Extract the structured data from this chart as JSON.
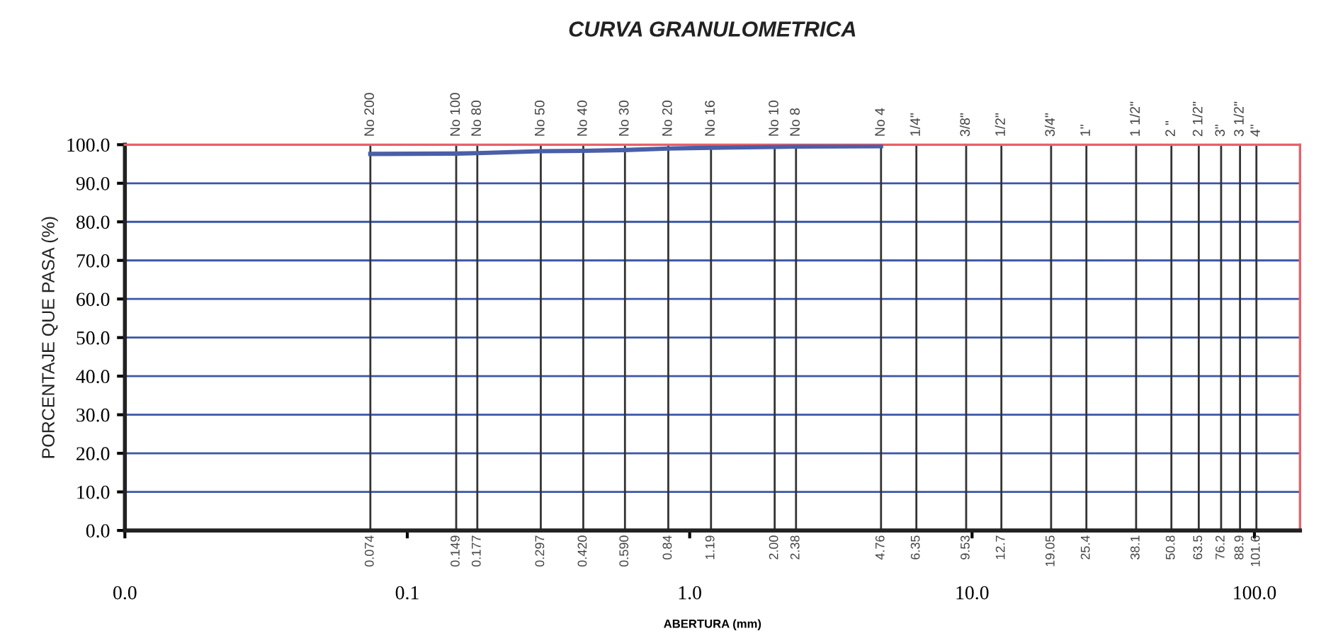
{
  "chart_data": {
    "type": "line",
    "title": "CURVA GRANULOMETRICA",
    "xlabel": "ABERTURA (mm)",
    "ylabel": "PORCENTAJE QUE PASA (%)",
    "log": "x",
    "xlim": [
      0.01,
      145
    ],
    "xticks": [
      {
        "value": 0.01,
        "label": "0.0"
      },
      0.1,
      {
        "value": 1,
        "label": "1.0"
      },
      {
        "value": 10,
        "label": "10.0"
      },
      {
        "value": 100,
        "label": "100.0"
      }
    ],
    "annotations": [
      {
        "text": "No 200",
        "x": 0.074,
        "y": 100
      },
      {
        "text": "No 100",
        "x": 0.149,
        "y": 100
      },
      {
        "text": "No 80",
        "x": 0.177,
        "y": 100
      },
      {
        "text": "No 50",
        "x": 0.297,
        "y": 100
      },
      {
        "text": "No 40",
        "x": 0.42,
        "y": 100
      },
      {
        "text": "No 30",
        "x": 0.59,
        "y": 100
      },
      {
        "text": "No 20",
        "x": 0.84,
        "y": 100
      },
      {
        "text": "No 16",
        "x": 1.19,
        "y": 100
      },
      {
        "text": "No 10",
        "x": 2.0,
        "y": 100
      },
      {
        "text": "No 8",
        "x": 2.38,
        "y": 100
      },
      {
        "text": "No 4",
        "x": 4.76,
        "y": 100
      },
      {
        "text": "1/4\"",
        "x": 6.35,
        "y": 100
      },
      {
        "text": "3/8\"",
        "x": 9.53,
        "y": 100
      },
      {
        "text": "1/2\"",
        "x": 12.7,
        "y": 100
      },
      {
        "text": "3/4\"",
        "x": 19.05,
        "y": 100
      },
      {
        "text": "1\"",
        "x": 25.4,
        "y": 100
      },
      {
        "text": "1 1/2\"",
        "x": 38.1,
        "y": 100
      },
      {
        "text": "2 \"",
        "x": 50.8,
        "y": 100
      },
      {
        "text": "2 1/2\"",
        "x": 63.5,
        "y": 100
      },
      {
        "text": "3\"",
        "x": 76.2,
        "y": 100
      },
      {
        "text": "3 1/2\"",
        "x": 88.9,
        "y": 100
      },
      {
        "text": "4\"",
        "x": 101.6,
        "y": 100
      }
    ],
    "ylim": [
      0,
      100
    ],
    "yticks": [
      {
        "value": 0,
        "label": "0.0"
      },
      {
        "value": 10,
        "label": "10.0"
      },
      {
        "value": 20,
        "label": "20.0"
      },
      {
        "value": 30,
        "label": "30.0"
      },
      {
        "value": 40,
        "label": "40.0"
      },
      {
        "value": 50,
        "label": "50.0"
      },
      {
        "value": 60,
        "label": "60.0"
      },
      {
        "value": 70,
        "label": "70.0"
      },
      {
        "value": 80,
        "label": "80.0"
      },
      {
        "value": 90,
        "label": "90.0"
      },
      {
        "value": 100,
        "label": "100.0"
      }
    ],
    "grid": "y",
    "legend": false,
    "line_style": "solid",
    "series": [
      {
        "color": "#4a5fa8",
        "x": [
          0.074,
          0.149,
          0.177,
          0.297,
          0.42,
          0.59,
          0.84,
          1.19,
          2.0,
          2.38,
          4.76
        ],
        "values": [
          97.6,
          97.7,
          97.8,
          98.3,
          98.4,
          98.6,
          99.0,
          99.2,
          99.4,
          99.5,
          99.6
        ]
      }
    ],
    "ref_lines": [
      {
        "axis": "x",
        "value": 0.074,
        "label": "0.074"
      },
      {
        "axis": "x",
        "value": 0.149,
        "label": "0.149"
      },
      {
        "axis": "x",
        "value": 0.177,
        "label": "0.177"
      },
      {
        "axis": "x",
        "value": 0.297,
        "label": "0.297"
      },
      {
        "axis": "x",
        "value": 0.42,
        "label": "0.420"
      },
      {
        "axis": "x",
        "value": 0.59,
        "label": "0.590"
      },
      {
        "axis": "x",
        "value": 0.84,
        "label": "0.84"
      },
      {
        "axis": "x",
        "value": 1.19,
        "label": "1.19"
      },
      {
        "axis": "x",
        "value": 2.0,
        "label": "2.00"
      },
      {
        "axis": "x",
        "value": 2.38,
        "label": "2.38"
      },
      {
        "axis": "x",
        "value": 4.76,
        "label": "4.76"
      },
      {
        "axis": "x",
        "value": 6.35,
        "label": "6.35"
      },
      {
        "axis": "x",
        "value": 9.53,
        "label": "9.53"
      },
      {
        "axis": "x",
        "value": 12.7,
        "label": "12.7"
      },
      {
        "axis": "x",
        "value": 19.05,
        "label": "19.05"
      },
      {
        "axis": "x",
        "value": 25.4,
        "label": "25.4"
      },
      {
        "axis": "x",
        "value": 38.1,
        "label": "38.1"
      },
      {
        "axis": "x",
        "value": 50.8,
        "label": "50.8"
      },
      {
        "axis": "x",
        "value": 63.5,
        "label": "63.5"
      },
      {
        "axis": "x",
        "value": 76.2,
        "label": "76.2"
      },
      {
        "axis": "x",
        "value": 88.9,
        "label": "88.9"
      },
      {
        "axis": "x",
        "value": 101.6,
        "label": "101.6"
      }
    ]
  }
}
